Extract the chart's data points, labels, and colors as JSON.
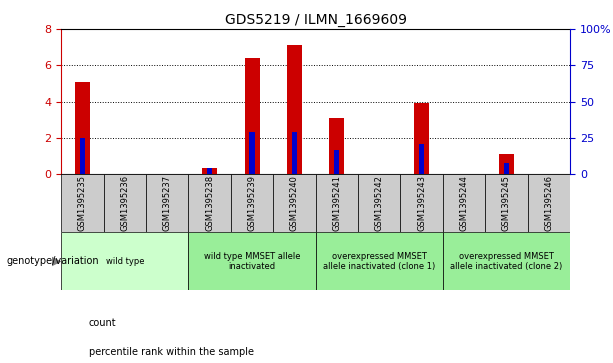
{
  "title": "GDS5219 / ILMN_1669609",
  "samples": [
    "GSM1395235",
    "GSM1395236",
    "GSM1395237",
    "GSM1395238",
    "GSM1395239",
    "GSM1395240",
    "GSM1395241",
    "GSM1395242",
    "GSM1395243",
    "GSM1395244",
    "GSM1395245",
    "GSM1395246"
  ],
  "count_values": [
    5.1,
    0,
    0,
    0.35,
    6.4,
    7.1,
    3.1,
    0,
    3.9,
    0,
    1.1,
    0
  ],
  "percentile_values": [
    25,
    0,
    0,
    4,
    29,
    29,
    17,
    0,
    21,
    0,
    8,
    0
  ],
  "ylim_left": [
    0,
    8
  ],
  "ylim_right": [
    0,
    100
  ],
  "yticks_left": [
    0,
    2,
    4,
    6,
    8
  ],
  "ytick_labels_right": [
    "0",
    "25",
    "50",
    "75",
    "100%"
  ],
  "yticks_right": [
    0,
    25,
    50,
    75,
    100
  ],
  "bar_color_count": "#cc0000",
  "bar_color_percentile": "#0000cc",
  "left_tick_color": "#cc0000",
  "right_tick_color": "#0000cc",
  "bar_width": 0.35,
  "groups": [
    {
      "cols": [
        0,
        1,
        2
      ],
      "label": "wild type",
      "color": "#ccffcc"
    },
    {
      "cols": [
        3,
        4,
        5
      ],
      "label": "wild type MMSET allele\ninactivated",
      "color": "#99ee99"
    },
    {
      "cols": [
        6,
        7,
        8
      ],
      "label": "overexpressed MMSET\nallele inactivated (clone 1)",
      "color": "#99ee99"
    },
    {
      "cols": [
        9,
        10,
        11
      ],
      "label": "overexpressed MMSET\nallele inactivated (clone 2)",
      "color": "#99ee99"
    }
  ],
  "genotype_label": "genotype/variation",
  "legend_count": "count",
  "legend_percentile": "percentile rank within the sample",
  "cell_bg": "#cccccc",
  "ax_bg": "#ffffff"
}
